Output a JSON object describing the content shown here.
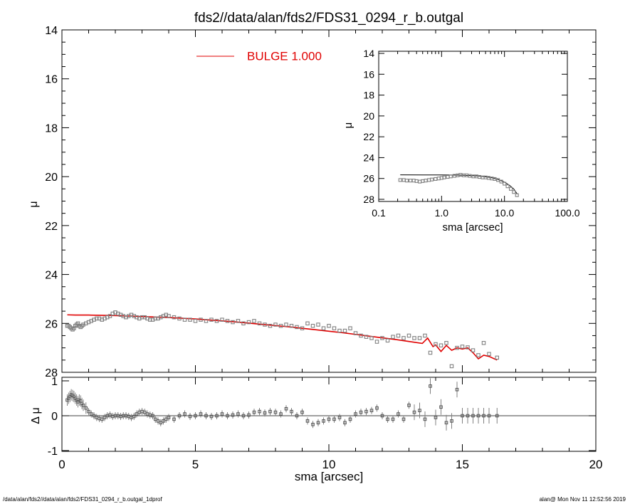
{
  "title": "fds2//data/alan/fds2/FDS31_0294_r_b.outgal",
  "footer": {
    "left": "/data/alan/fds2//data/alan/fds2/FDS31_0294_r_b.outgal_1dprof",
    "right": "alan@  Mon Nov 11 12:52:56 2019"
  },
  "colors": {
    "model": "#e00000",
    "data": "#808080",
    "axes": "#000000"
  },
  "chart_data": [
    {
      "id": "main",
      "type": "scatter",
      "xlabel": "",
      "ylabel": "μ",
      "xlim": [
        0,
        20
      ],
      "ylim": [
        28,
        14
      ],
      "y_inverted": true,
      "yticks": [
        14,
        16,
        18,
        20,
        22,
        24,
        26,
        28
      ],
      "legend": {
        "label": "BULGE  1.000",
        "color": "#e00000",
        "position": "top-center"
      },
      "series": [
        {
          "role": "data",
          "x": [
            0.2,
            0.25,
            0.3,
            0.35,
            0.4,
            0.45,
            0.5,
            0.55,
            0.6,
            0.65,
            0.7,
            0.75,
            0.8,
            0.9,
            1.0,
            1.1,
            1.2,
            1.3,
            1.4,
            1.5,
            1.6,
            1.7,
            1.8,
            1.9,
            2.0,
            2.1,
            2.2,
            2.3,
            2.4,
            2.5,
            2.6,
            2.7,
            2.8,
            2.9,
            3.0,
            3.1,
            3.2,
            3.3,
            3.4,
            3.5,
            3.6,
            3.7,
            3.8,
            3.9,
            4.0,
            4.2,
            4.4,
            4.6,
            4.8,
            5.0,
            5.2,
            5.4,
            5.6,
            5.8,
            6.0,
            6.2,
            6.4,
            6.6,
            6.8,
            7.0,
            7.2,
            7.4,
            7.6,
            7.8,
            8.0,
            8.2,
            8.4,
            8.6,
            8.8,
            9.0,
            9.2,
            9.4,
            9.6,
            9.8,
            10.0,
            10.2,
            10.4,
            10.6,
            10.8,
            11.0,
            11.2,
            11.4,
            11.6,
            11.8,
            12.0,
            12.2,
            12.4,
            12.6,
            12.8,
            13.0,
            13.2,
            13.4,
            13.6,
            13.8,
            14.0,
            14.2,
            14.4,
            14.6,
            14.8,
            15.0,
            15.2,
            15.4,
            15.6,
            15.8,
            16.0,
            16.3
          ],
          "y": [
            26.1,
            26.1,
            26.15,
            26.2,
            26.25,
            26.2,
            26.1,
            26.05,
            26.0,
            26.1,
            26.15,
            26.1,
            26.05,
            26.0,
            25.95,
            25.9,
            25.85,
            25.8,
            25.8,
            25.85,
            25.8,
            25.75,
            25.7,
            25.6,
            25.55,
            25.6,
            25.65,
            25.7,
            25.75,
            25.7,
            25.65,
            25.7,
            25.75,
            25.8,
            25.75,
            25.75,
            25.8,
            25.85,
            25.85,
            25.8,
            25.8,
            25.75,
            25.7,
            25.65,
            25.7,
            25.75,
            25.8,
            25.85,
            25.85,
            25.9,
            25.85,
            25.9,
            25.85,
            25.9,
            25.85,
            25.9,
            25.95,
            25.9,
            26.0,
            25.95,
            25.9,
            26.0,
            26.05,
            26.1,
            26.05,
            26.1,
            26.05,
            26.1,
            26.15,
            26.2,
            26.0,
            26.1,
            26.05,
            26.2,
            26.1,
            26.2,
            26.3,
            26.3,
            26.2,
            26.4,
            26.5,
            26.55,
            26.6,
            26.75,
            26.6,
            26.7,
            26.55,
            26.5,
            26.6,
            26.5,
            26.6,
            26.6,
            26.5,
            27.2,
            26.85,
            26.9,
            26.8,
            27.75,
            27.0,
            26.95,
            26.98,
            27.1,
            27.3,
            26.8,
            27.25,
            27.4
          ]
        },
        {
          "role": "model",
          "name": "BULGE  1.000",
          "x": [
            0.2,
            0.5,
            1.0,
            1.5,
            2.0,
            2.5,
            3.0,
            3.5,
            4.0,
            4.5,
            5.0,
            5.5,
            6.0,
            6.5,
            7.0,
            7.5,
            8.0,
            8.5,
            9.0,
            9.5,
            10.0,
            10.5,
            11.0,
            11.5,
            12.0,
            12.5,
            13.0,
            13.5,
            13.7,
            13.9,
            14.0,
            14.2,
            14.4,
            14.6,
            14.8,
            15.0,
            15.2,
            15.4,
            15.6,
            15.8,
            16.0,
            16.3
          ],
          "y": [
            25.65,
            25.66,
            25.66,
            25.67,
            25.68,
            25.7,
            25.72,
            25.74,
            25.76,
            25.79,
            25.82,
            25.86,
            25.9,
            25.94,
            25.99,
            26.04,
            26.09,
            26.14,
            26.2,
            26.26,
            26.32,
            26.38,
            26.45,
            26.52,
            26.59,
            26.66,
            26.74,
            26.82,
            26.6,
            26.95,
            26.88,
            27.15,
            26.9,
            27.1,
            27.0,
            27.05,
            27.0,
            27.2,
            27.45,
            27.3,
            27.35,
            27.5
          ]
        }
      ]
    },
    {
      "id": "residual",
      "type": "scatter",
      "xlabel": "sma [arcsec]",
      "ylabel": "Δ μ",
      "xlim": [
        0,
        20
      ],
      "ylim": [
        -1,
        1
      ],
      "xticks": [
        0,
        5,
        10,
        15,
        20
      ],
      "yticks": [
        -1,
        0,
        1
      ],
      "reference_line": 0,
      "series": [
        {
          "role": "residual",
          "x": [
            0.2,
            0.25,
            0.3,
            0.35,
            0.4,
            0.45,
            0.5,
            0.55,
            0.6,
            0.65,
            0.7,
            0.75,
            0.8,
            0.9,
            1.0,
            1.1,
            1.2,
            1.3,
            1.4,
            1.5,
            1.6,
            1.7,
            1.8,
            1.9,
            2.0,
            2.1,
            2.2,
            2.3,
            2.4,
            2.5,
            2.6,
            2.7,
            2.8,
            2.9,
            3.0,
            3.1,
            3.2,
            3.3,
            3.4,
            3.5,
            3.6,
            3.7,
            3.8,
            3.9,
            4.0,
            4.2,
            4.4,
            4.6,
            4.8,
            5.0,
            5.2,
            5.4,
            5.6,
            5.8,
            6.0,
            6.2,
            6.4,
            6.6,
            6.8,
            7.0,
            7.2,
            7.4,
            7.6,
            7.8,
            8.0,
            8.2,
            8.4,
            8.6,
            8.8,
            9.0,
            9.2,
            9.4,
            9.6,
            9.8,
            10.0,
            10.2,
            10.4,
            10.6,
            10.8,
            11.0,
            11.2,
            11.4,
            11.6,
            11.8,
            12.0,
            12.2,
            12.4,
            12.6,
            12.8,
            13.0,
            13.2,
            13.4,
            13.6,
            13.8,
            14.0,
            14.2,
            14.4,
            14.6,
            14.8,
            15.0,
            15.2,
            15.4,
            15.6,
            15.8,
            16.0,
            16.3
          ],
          "y": [
            0.45,
            0.5,
            0.55,
            0.6,
            0.58,
            0.55,
            0.5,
            0.45,
            0.4,
            0.45,
            0.42,
            0.35,
            0.3,
            0.22,
            0.12,
            0.05,
            0.0,
            -0.05,
            -0.08,
            -0.1,
            -0.05,
            0.0,
            0.02,
            -0.02,
            0.0,
            0.0,
            -0.02,
            0.0,
            0.0,
            -0.02,
            -0.05,
            -0.02,
            0.05,
            0.1,
            0.12,
            0.1,
            0.05,
            0.02,
            0.0,
            -0.1,
            -0.15,
            -0.2,
            -0.15,
            -0.1,
            -0.05,
            -0.1,
            0.0,
            0.05,
            -0.02,
            0.0,
            0.05,
            0.0,
            -0.02,
            0.0,
            0.05,
            0.0,
            0.02,
            0.05,
            0.0,
            0.02,
            0.1,
            0.12,
            0.08,
            0.12,
            0.1,
            0.05,
            0.2,
            0.12,
            0.0,
            0.1,
            -0.15,
            -0.25,
            -0.2,
            -0.15,
            -0.1,
            -0.1,
            -0.05,
            -0.2,
            -0.1,
            0.05,
            0.1,
            0.12,
            0.15,
            0.22,
            0.0,
            -0.1,
            -0.1,
            0.05,
            -0.1,
            0.3,
            0.1,
            0.15,
            -0.1,
            0.85,
            -0.05,
            0.25,
            -0.2,
            -0.15,
            0.75,
            0.0,
            0.0,
            0.0,
            0.0,
            0.0,
            0.0,
            0.0
          ]
        }
      ]
    },
    {
      "id": "inset",
      "type": "scatter",
      "xlabel": "sma [arcsec]",
      "ylabel": "μ",
      "xscale": "log",
      "xlim": [
        0.1,
        100.0
      ],
      "ylim": [
        28,
        14
      ],
      "y_inverted": true,
      "xticks": [
        0.1,
        1.0,
        10.0,
        100.0
      ],
      "xticklabels": [
        "0.1",
        "1.0",
        "10.0",
        "100.0"
      ],
      "yticks": [
        14,
        16,
        18,
        20,
        22,
        24,
        26,
        28
      ],
      "series": [
        {
          "role": "data",
          "x": [
            0.22,
            0.25,
            0.28,
            0.32,
            0.36,
            0.4,
            0.45,
            0.5,
            0.56,
            0.63,
            0.7,
            0.8,
            0.9,
            1.0,
            1.1,
            1.25,
            1.4,
            1.6,
            1.8,
            2.0,
            2.25,
            2.5,
            2.8,
            3.2,
            3.6,
            4.0,
            4.5,
            5.0,
            5.6,
            6.3,
            7.0,
            7.9,
            8.9,
            10.0,
            11.2,
            12.6,
            14.1,
            15.8
          ],
          "y": [
            26.15,
            26.15,
            26.2,
            26.2,
            26.2,
            26.25,
            26.3,
            26.25,
            26.2,
            26.15,
            26.1,
            26.05,
            26.0,
            25.95,
            25.9,
            25.85,
            25.8,
            25.75,
            25.7,
            25.65,
            25.7,
            25.7,
            25.75,
            25.8,
            25.8,
            25.85,
            25.9,
            25.9,
            25.95,
            26.0,
            26.05,
            26.15,
            26.3,
            26.5,
            26.75,
            27.0,
            27.3,
            27.6
          ]
        },
        {
          "role": "model",
          "x": [
            0.22,
            0.5,
            1.0,
            2.0,
            4.0,
            6.0,
            8.0,
            10.0,
            12.0,
            14.0,
            16.0
          ],
          "y": [
            25.65,
            25.66,
            25.66,
            25.68,
            25.76,
            25.9,
            26.1,
            26.35,
            26.65,
            27.0,
            27.5
          ]
        }
      ]
    }
  ]
}
